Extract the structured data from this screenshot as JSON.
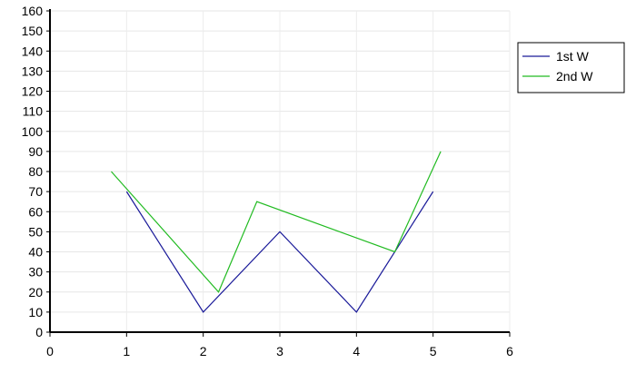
{
  "chart_data": {
    "type": "line",
    "title": "",
    "xlabel": "",
    "ylabel": "",
    "xlim": [
      0,
      6
    ],
    "ylim": [
      0,
      160
    ],
    "x_ticks": [
      0,
      1,
      2,
      3,
      4,
      5,
      6
    ],
    "y_ticks": [
      0,
      10,
      20,
      30,
      40,
      50,
      60,
      70,
      80,
      90,
      100,
      110,
      120,
      130,
      140,
      150,
      160
    ],
    "grid": true,
    "legend_position": "right",
    "series": [
      {
        "name": "1st W",
        "color": "#1a1a99",
        "x": [
          1,
          2,
          3,
          4,
          5
        ],
        "y": [
          70,
          10,
          50,
          10,
          70
        ]
      },
      {
        "name": "2nd W",
        "color": "#22bb22",
        "x": [
          0.8,
          2.2,
          2.7,
          4.5,
          5.1
        ],
        "y": [
          80,
          20,
          65,
          40,
          90
        ]
      }
    ]
  }
}
